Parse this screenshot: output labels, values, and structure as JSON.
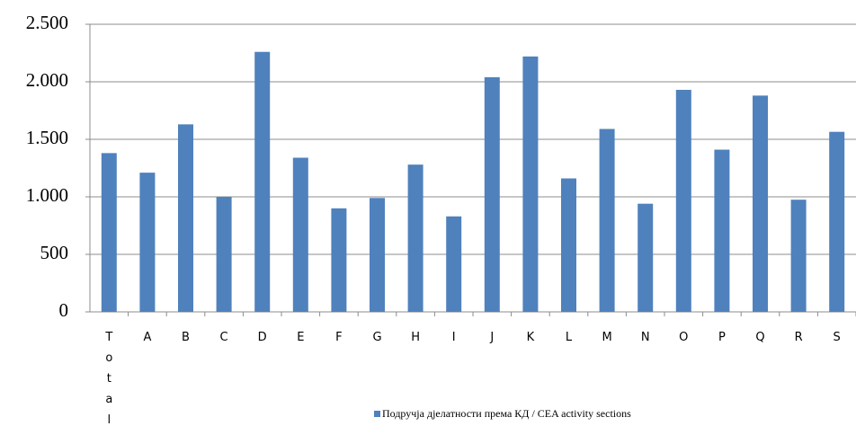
{
  "chart_data": {
    "type": "bar",
    "categories": [
      "Total",
      "A",
      "B",
      "C",
      "D",
      "E",
      "F",
      "G",
      "H",
      "I",
      "J",
      "K",
      "L",
      "M",
      "N",
      "O",
      "P",
      "Q",
      "R",
      "S"
    ],
    "series": [
      {
        "name": "Подручја дјелатности према КД / CEA activity sections",
        "color": "#4f81bd",
        "values": [
          1380,
          1210,
          1630,
          1000,
          2260,
          1340,
          900,
          990,
          1280,
          830,
          2040,
          2220,
          1160,
          1590,
          940,
          1930,
          1410,
          1880,
          975,
          1565
        ]
      }
    ],
    "ylim": [
      0,
      2500
    ],
    "yticks": [
      0,
      500,
      {
        "value": 1000,
        "label": "1.000"
      },
      {
        "value": 1500,
        "label": "1.500"
      },
      {
        "value": 2000,
        "label": "2.000"
      },
      {
        "value": 2500,
        "label": "2.500"
      }
    ],
    "grid": true,
    "legend": "bottom"
  }
}
